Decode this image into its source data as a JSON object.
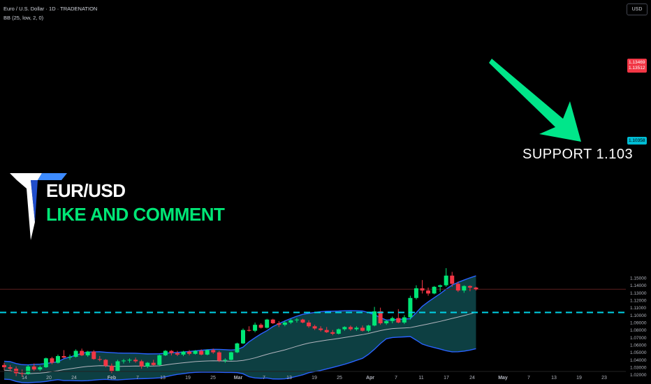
{
  "header": {
    "symbol_line": "Euro / U.S. Dollar · 1D · TRADENATION",
    "indicator_line": "BB (25, low, 2, 0)"
  },
  "brand": {
    "line1": "EUR/USD",
    "line2": "LIKE AND COMMENT"
  },
  "annotation": {
    "support_text": "SUPPORT  1.103"
  },
  "price_axis": {
    "currency": "USD",
    "last_price_label": "1.13469",
    "last_price_sublabel": "1.13512",
    "support_price_label": "1.10358"
  },
  "colors": {
    "up": "#00e676",
    "down": "#f23645",
    "band_fill": "#0f4a4d",
    "band_line": "#2962ff",
    "basis": "#b2b5be",
    "support_line": "#00d4e8",
    "arrow": "#00e68a",
    "price_line": "#5d1f1f"
  },
  "chart_data": {
    "type": "candlestick",
    "ylim": [
      1.015,
      1.165
    ],
    "yticks": [
      "1.02000",
      "1.03000",
      "1.04000",
      "1.05000",
      "1.06000",
      "1.07000",
      "1.08000",
      "1.09000",
      "1.10000",
      "1.11000",
      "1.12000",
      "1.13000",
      "1.14000",
      "1.15000"
    ],
    "xticks": [
      "14",
      "20",
      "24",
      "Feb",
      "7",
      "13",
      "19",
      "25",
      "Mar",
      "7",
      "13",
      "19",
      "25",
      "Apr",
      "7",
      "11",
      "17",
      "24",
      "May",
      "7",
      "13",
      "19",
      "23"
    ],
    "support_level": 1.10358,
    "last_price": 1.13469,
    "candles": [
      {
        "o": 1.033,
        "h": 1.036,
        "l": 1.026,
        "c": 1.03
      },
      {
        "o": 1.03,
        "h": 1.033,
        "l": 1.025,
        "c": 1.028
      },
      {
        "o": 1.028,
        "h": 1.031,
        "l": 1.018,
        "c": 1.022
      },
      {
        "o": 1.022,
        "h": 1.027,
        "l": 1.017,
        "c": 1.021
      },
      {
        "o": 1.021,
        "h": 1.033,
        "l": 1.02,
        "c": 1.031
      },
      {
        "o": 1.031,
        "h": 1.035,
        "l": 1.025,
        "c": 1.027
      },
      {
        "o": 1.027,
        "h": 1.032,
        "l": 1.024,
        "c": 1.03
      },
      {
        "o": 1.03,
        "h": 1.043,
        "l": 1.029,
        "c": 1.042
      },
      {
        "o": 1.042,
        "h": 1.044,
        "l": 1.034,
        "c": 1.036
      },
      {
        "o": 1.036,
        "h": 1.047,
        "l": 1.035,
        "c": 1.045
      },
      {
        "o": 1.045,
        "h": 1.053,
        "l": 1.042,
        "c": 1.043
      },
      {
        "o": 1.043,
        "h": 1.047,
        "l": 1.04,
        "c": 1.044
      },
      {
        "o": 1.044,
        "h": 1.054,
        "l": 1.043,
        "c": 1.052
      },
      {
        "o": 1.052,
        "h": 1.055,
        "l": 1.045,
        "c": 1.046
      },
      {
        "o": 1.046,
        "h": 1.052,
        "l": 1.044,
        "c": 1.051
      },
      {
        "o": 1.051,
        "h": 1.053,
        "l": 1.04,
        "c": 1.041
      },
      {
        "o": 1.041,
        "h": 1.045,
        "l": 1.038,
        "c": 1.04
      },
      {
        "o": 1.04,
        "h": 1.041,
        "l": 1.03,
        "c": 1.032
      },
      {
        "o": 1.032,
        "h": 1.035,
        "l": 1.022,
        "c": 1.025
      },
      {
        "o": 1.025,
        "h": 1.04,
        "l": 1.024,
        "c": 1.038
      },
      {
        "o": 1.038,
        "h": 1.041,
        "l": 1.035,
        "c": 1.039
      },
      {
        "o": 1.039,
        "h": 1.042,
        "l": 1.036,
        "c": 1.04
      },
      {
        "o": 1.04,
        "h": 1.043,
        "l": 1.036,
        "c": 1.038
      },
      {
        "o": 1.038,
        "h": 1.04,
        "l": 1.028,
        "c": 1.031
      },
      {
        "o": 1.031,
        "h": 1.037,
        "l": 1.029,
        "c": 1.036
      },
      {
        "o": 1.036,
        "h": 1.04,
        "l": 1.032,
        "c": 1.033
      },
      {
        "o": 1.033,
        "h": 1.047,
        "l": 1.032,
        "c": 1.046
      },
      {
        "o": 1.046,
        "h": 1.053,
        "l": 1.045,
        "c": 1.052
      },
      {
        "o": 1.052,
        "h": 1.053,
        "l": 1.046,
        "c": 1.049
      },
      {
        "o": 1.049,
        "h": 1.052,
        "l": 1.045,
        "c": 1.047
      },
      {
        "o": 1.047,
        "h": 1.052,
        "l": 1.045,
        "c": 1.051
      },
      {
        "o": 1.051,
        "h": 1.053,
        "l": 1.046,
        "c": 1.048
      },
      {
        "o": 1.048,
        "h": 1.053,
        "l": 1.047,
        "c": 1.052
      },
      {
        "o": 1.052,
        "h": 1.054,
        "l": 1.046,
        "c": 1.047
      },
      {
        "o": 1.047,
        "h": 1.054,
        "l": 1.046,
        "c": 1.053
      },
      {
        "o": 1.053,
        "h": 1.055,
        "l": 1.048,
        "c": 1.05
      },
      {
        "o": 1.05,
        "h": 1.052,
        "l": 1.037,
        "c": 1.039
      },
      {
        "o": 1.039,
        "h": 1.042,
        "l": 1.036,
        "c": 1.04
      },
      {
        "o": 1.04,
        "h": 1.051,
        "l": 1.039,
        "c": 1.05
      },
      {
        "o": 1.05,
        "h": 1.063,
        "l": 1.049,
        "c": 1.062
      },
      {
        "o": 1.062,
        "h": 1.082,
        "l": 1.061,
        "c": 1.08
      },
      {
        "o": 1.08,
        "h": 1.085,
        "l": 1.078,
        "c": 1.079
      },
      {
        "o": 1.079,
        "h": 1.09,
        "l": 1.077,
        "c": 1.087
      },
      {
        "o": 1.087,
        "h": 1.089,
        "l": 1.082,
        "c": 1.083
      },
      {
        "o": 1.083,
        "h": 1.095,
        "l": 1.082,
        "c": 1.094
      },
      {
        "o": 1.094,
        "h": 1.095,
        "l": 1.088,
        "c": 1.089
      },
      {
        "o": 1.089,
        "h": 1.092,
        "l": 1.084,
        "c": 1.087
      },
      {
        "o": 1.087,
        "h": 1.092,
        "l": 1.085,
        "c": 1.09
      },
      {
        "o": 1.09,
        "h": 1.095,
        "l": 1.088,
        "c": 1.093
      },
      {
        "o": 1.093,
        "h": 1.096,
        "l": 1.09,
        "c": 1.094
      },
      {
        "o": 1.094,
        "h": 1.095,
        "l": 1.089,
        "c": 1.09
      },
      {
        "o": 1.09,
        "h": 1.093,
        "l": 1.083,
        "c": 1.085
      },
      {
        "o": 1.085,
        "h": 1.087,
        "l": 1.08,
        "c": 1.082
      },
      {
        "o": 1.082,
        "h": 1.085,
        "l": 1.078,
        "c": 1.08
      },
      {
        "o": 1.08,
        "h": 1.084,
        "l": 1.076,
        "c": 1.077
      },
      {
        "o": 1.077,
        "h": 1.08,
        "l": 1.073,
        "c": 1.075
      },
      {
        "o": 1.075,
        "h": 1.082,
        "l": 1.074,
        "c": 1.081
      },
      {
        "o": 1.081,
        "h": 1.085,
        "l": 1.079,
        "c": 1.084
      },
      {
        "o": 1.084,
        "h": 1.086,
        "l": 1.079,
        "c": 1.081
      },
      {
        "o": 1.081,
        "h": 1.085,
        "l": 1.079,
        "c": 1.083
      },
      {
        "o": 1.083,
        "h": 1.086,
        "l": 1.078,
        "c": 1.079
      },
      {
        "o": 1.079,
        "h": 1.087,
        "l": 1.077,
        "c": 1.086
      },
      {
        "o": 1.086,
        "h": 1.111,
        "l": 1.085,
        "c": 1.105
      },
      {
        "o": 1.105,
        "h": 1.11,
        "l": 1.087,
        "c": 1.089
      },
      {
        "o": 1.089,
        "h": 1.094,
        "l": 1.087,
        "c": 1.092
      },
      {
        "o": 1.092,
        "h": 1.098,
        "l": 1.089,
        "c": 1.096
      },
      {
        "o": 1.096,
        "h": 1.108,
        "l": 1.089,
        "c": 1.09
      },
      {
        "o": 1.09,
        "h": 1.1,
        "l": 1.088,
        "c": 1.097
      },
      {
        "o": 1.097,
        "h": 1.126,
        "l": 1.094,
        "c": 1.123
      },
      {
        "o": 1.123,
        "h": 1.14,
        "l": 1.121,
        "c": 1.136
      },
      {
        "o": 1.136,
        "h": 1.147,
        "l": 1.129,
        "c": 1.133
      },
      {
        "o": 1.133,
        "h": 1.137,
        "l": 1.126,
        "c": 1.129
      },
      {
        "o": 1.129,
        "h": 1.139,
        "l": 1.128,
        "c": 1.138
      },
      {
        "o": 1.138,
        "h": 1.141,
        "l": 1.131,
        "c": 1.14
      },
      {
        "o": 1.14,
        "h": 1.163,
        "l": 1.138,
        "c": 1.153
      },
      {
        "o": 1.153,
        "h": 1.158,
        "l": 1.138,
        "c": 1.142
      },
      {
        "o": 1.142,
        "h": 1.145,
        "l": 1.131,
        "c": 1.133
      },
      {
        "o": 1.133,
        "h": 1.14,
        "l": 1.13,
        "c": 1.139
      },
      {
        "o": 1.139,
        "h": 1.14,
        "l": 1.132,
        "c": 1.137
      },
      {
        "o": 1.137,
        "h": 1.138,
        "l": 1.133,
        "c": 1.1347
      }
    ]
  }
}
